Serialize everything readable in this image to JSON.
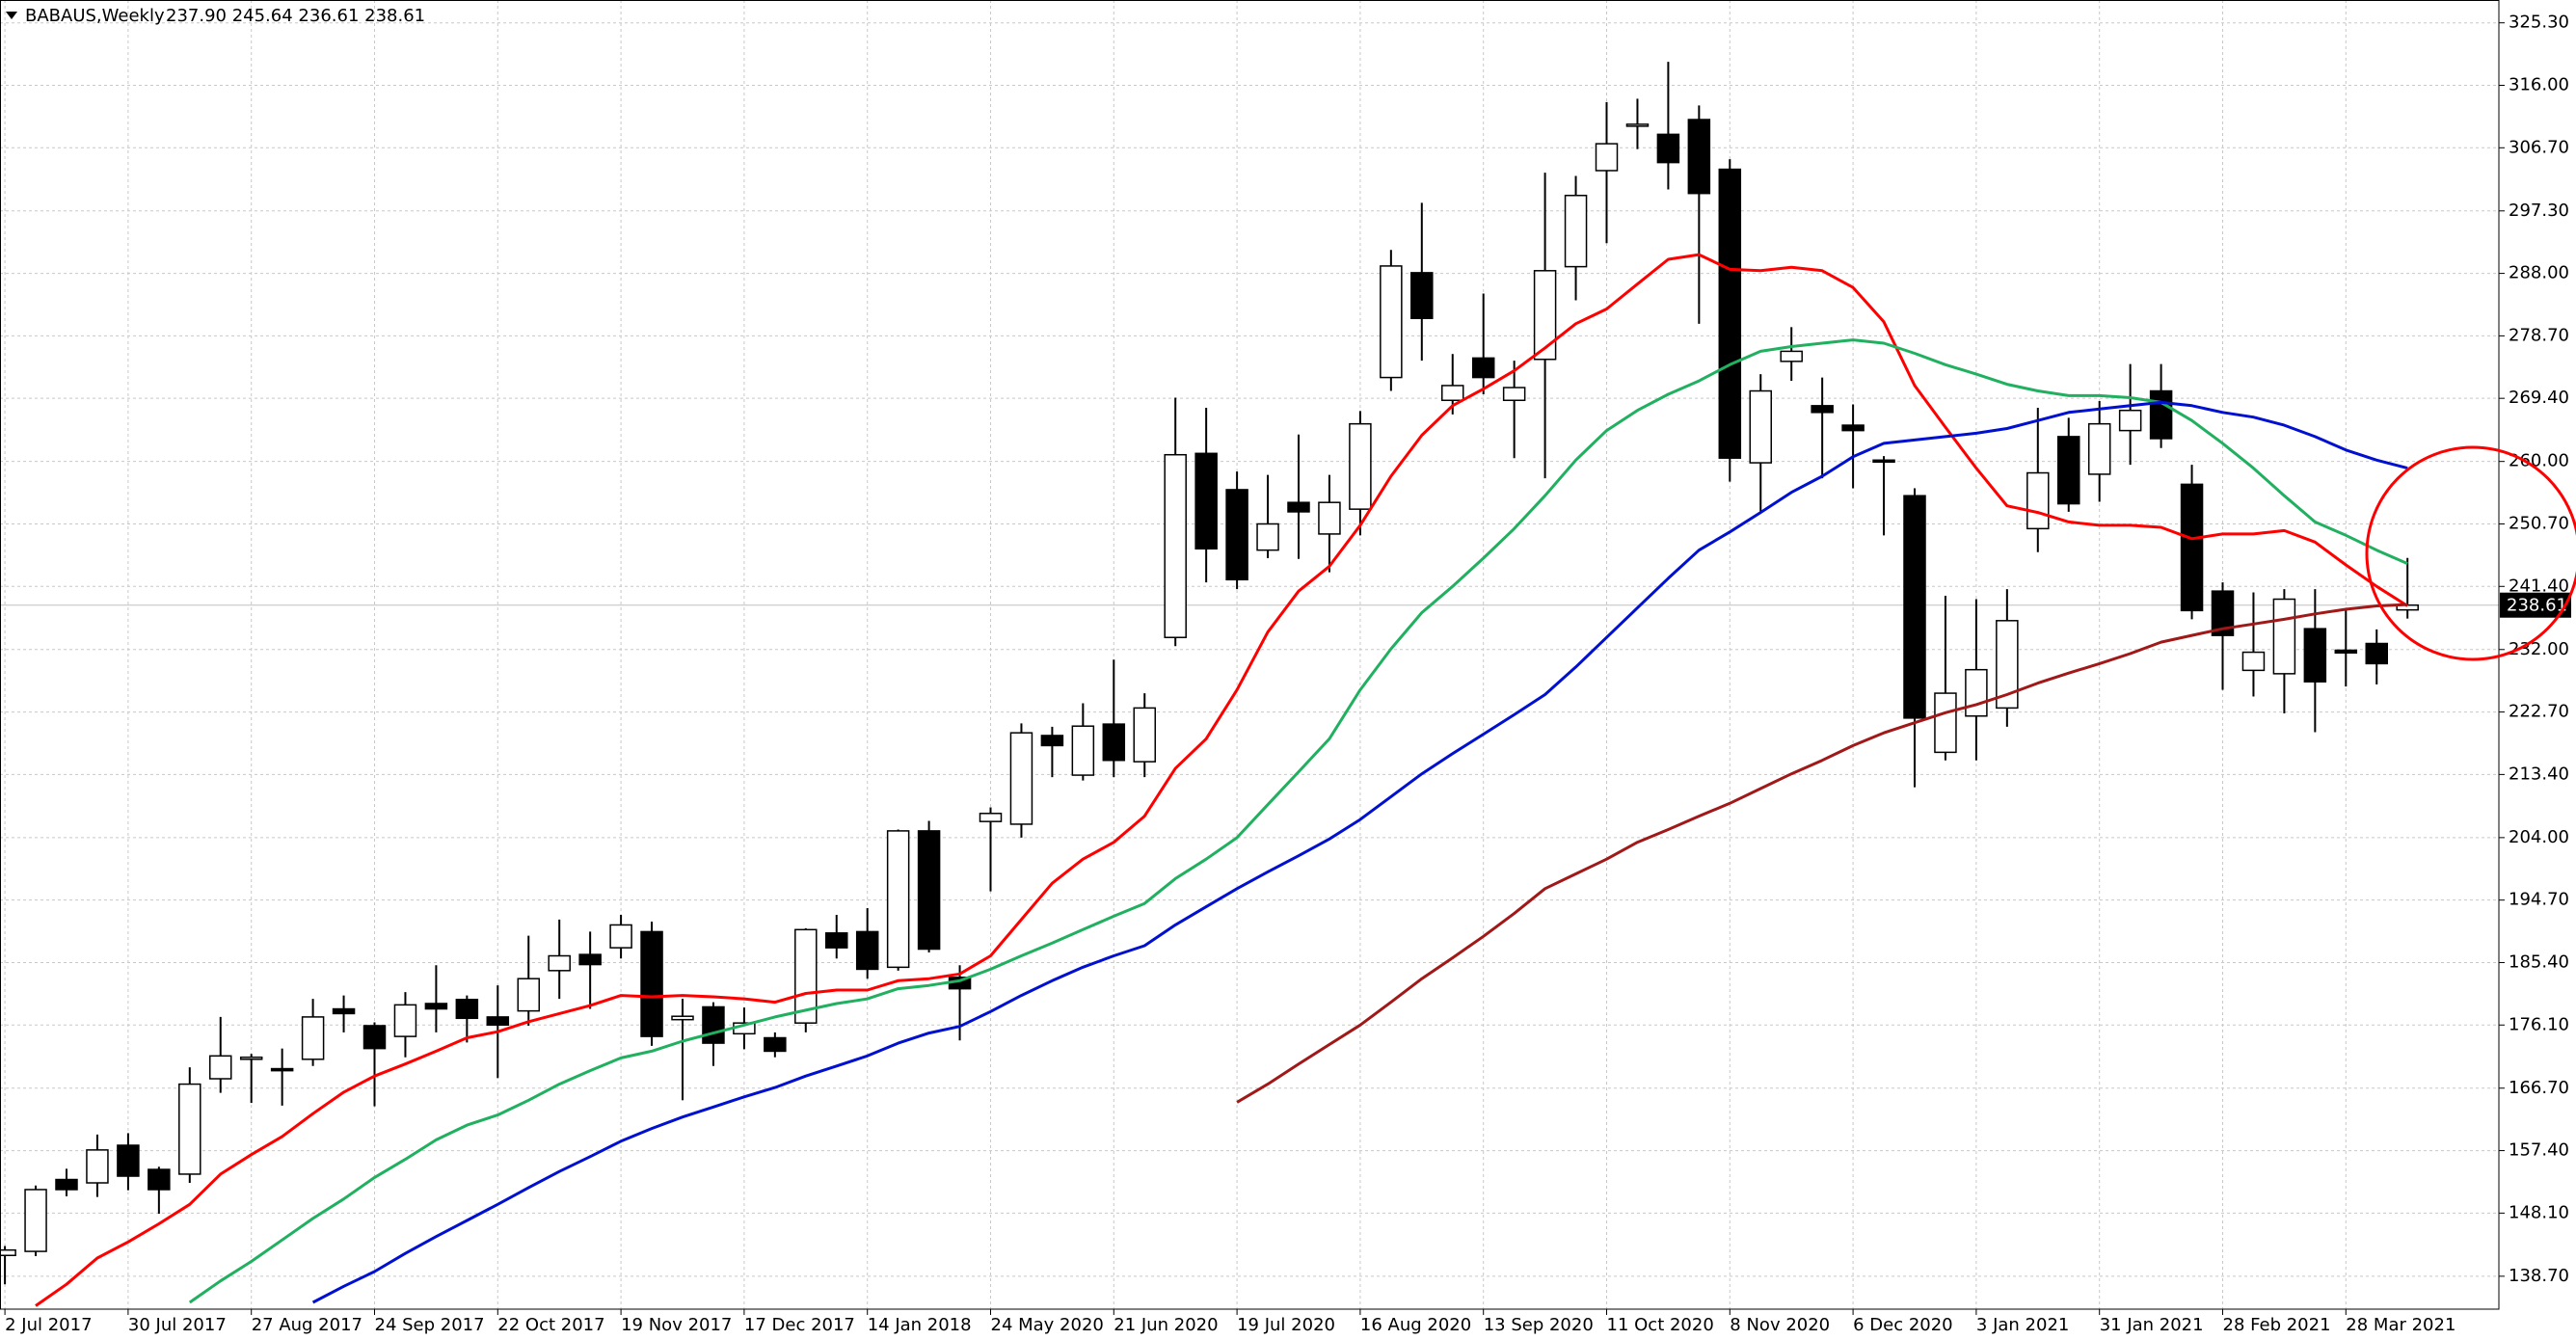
{
  "chart_data": {
    "type": "candlestick",
    "title": "BABAUS,Weekly",
    "header_values": "237.90 245.64 236.61 238.61",
    "categories": [
      "2 Jul 2017",
      null,
      null,
      null,
      "30 Jul 2017",
      null,
      null,
      null,
      "27 Aug 2017",
      null,
      null,
      null,
      "24 Sep 2017",
      null,
      null,
      null,
      "22 Oct 2017",
      null,
      null,
      null,
      "19 Nov 2017",
      null,
      null,
      null,
      "17 Dec 2017",
      null,
      null,
      null,
      "14 Jan 2018",
      null,
      null,
      null,
      "24 May 2020",
      null,
      null,
      null,
      "21 Jun 2020",
      null,
      null,
      null,
      "19 Jul 2020",
      null,
      null,
      null,
      "16 Aug 2020",
      null,
      null,
      null,
      "13 Sep 2020",
      null,
      null,
      null,
      "11 Oct 2020",
      null,
      null,
      null,
      "8 Nov 2020",
      null,
      null,
      null,
      "6 Dec 2020",
      null,
      null,
      null,
      "3 Jan 2021",
      null,
      null,
      null,
      "31 Jan 2021",
      null,
      null,
      null,
      "28 Feb 2021",
      null,
      null,
      null,
      "28 Mar 2021",
      null,
      null
    ],
    "open": [
      141.8,
      142.4,
      153.1,
      152.6,
      158.2,
      154.6,
      153.9,
      168.1,
      171.0,
      169.6,
      171.0,
      178.5,
      176.0,
      174.4,
      179.3,
      179.9,
      177.3,
      178.2,
      184.2,
      186.6,
      187.6,
      190.0,
      176.9,
      178.8,
      174.8,
      174.2,
      176.4,
      189.8,
      190.0,
      184.7,
      205.0,
      183.2,
      206.4,
      206.0,
      219.2,
      213.3,
      220.9,
      215.3,
      233.8,
      261.2,
      255.8,
      246.8,
      253.9,
      249.2,
      252.9,
      272.5,
      288.1,
      269.1,
      275.4,
      269.1,
      275.2,
      289.0,
      303.3,
      310.0,
      308.7,
      310.9,
      303.5,
      259.8,
      274.9,
      268.3,
      265.4,
      260.2,
      254.9,
      216.7,
      222.1,
      223.3,
      250.0,
      263.7,
      258.1,
      264.6,
      270.5,
      256.6,
      240.7,
      228.9,
      228.4,
      235.1,
      231.9,
      232.9,
      237.9
    ],
    "high": [
      143.2,
      152.2,
      154.7,
      159.8,
      160.0,
      155.0,
      169.8,
      177.3,
      171.8,
      172.6,
      180.0,
      180.5,
      176.5,
      181.0,
      185.0,
      180.5,
      182.0,
      189.4,
      191.8,
      190.0,
      192.5,
      191.5,
      180.0,
      179.5,
      178.7,
      175.0,
      190.5,
      192.5,
      193.5,
      205.2,
      206.5,
      185.0,
      208.5,
      221.0,
      220.5,
      224.0,
      230.5,
      225.5,
      269.5,
      268.0,
      258.5,
      258.0,
      264.0,
      258.0,
      267.5,
      291.5,
      298.5,
      276.0,
      285.0,
      275.0,
      303.0,
      302.5,
      313.5,
      314.0,
      319.5,
      313.0,
      305.0,
      273.0,
      280.0,
      272.5,
      268.5,
      260.8,
      256.0,
      240.0,
      239.5,
      241.0,
      268.0,
      266.5,
      269.0,
      274.5,
      274.5,
      259.5,
      242.0,
      240.5,
      241.0,
      241.0,
      238.0,
      235.0,
      245.64
    ],
    "low": [
      137.5,
      141.7,
      150.6,
      150.5,
      151.5,
      148.0,
      152.6,
      166.0,
      164.5,
      164.1,
      170.0,
      175.0,
      164.0,
      171.3,
      175.0,
      173.5,
      168.2,
      176.0,
      180.0,
      178.5,
      186.0,
      173.0,
      164.9,
      170.0,
      172.5,
      171.3,
      175.0,
      186.0,
      183.0,
      184.2,
      186.9,
      173.8,
      196.0,
      204.0,
      213.0,
      212.5,
      213.0,
      213.0,
      232.5,
      242.0,
      241.0,
      245.6,
      245.5,
      243.5,
      249.0,
      270.5,
      275.0,
      267.0,
      270.0,
      260.5,
      257.5,
      284.0,
      292.5,
      306.5,
      300.5,
      280.5,
      257.0,
      252.5,
      272.0,
      257.5,
      256.0,
      249.0,
      211.5,
      215.5,
      215.5,
      220.5,
      246.5,
      252.5,
      254.0,
      259.5,
      262.0,
      236.5,
      226.0,
      225.0,
      222.5,
      219.7,
      226.5,
      226.8,
      236.61
    ],
    "close": [
      142.6,
      151.6,
      151.6,
      157.5,
      153.6,
      151.6,
      167.3,
      171.5,
      171.3,
      169.3,
      177.3,
      177.8,
      172.6,
      179.1,
      178.5,
      177.1,
      176.1,
      183.0,
      186.4,
      185.1,
      191.0,
      174.4,
      177.4,
      173.4,
      176.4,
      172.2,
      190.3,
      187.6,
      184.4,
      205.0,
      187.4,
      181.5,
      207.6,
      219.6,
      217.7,
      220.6,
      215.5,
      223.3,
      261.0,
      247.0,
      242.4,
      250.7,
      252.5,
      253.9,
      265.6,
      289.1,
      281.3,
      271.3,
      272.5,
      271.0,
      288.4,
      299.6,
      307.3,
      310.2,
      304.5,
      299.9,
      260.5,
      270.5,
      276.4,
      267.3,
      264.6,
      260.0,
      221.8,
      225.5,
      229.0,
      236.3,
      258.3,
      253.7,
      265.6,
      267.6,
      263.4,
      237.8,
      234.1,
      231.6,
      239.5,
      227.2,
      231.5,
      229.9,
      238.61
    ],
    "series": [
      {
        "color": "#ff0000",
        "values": [
          null,
          134.3,
          137.5,
          141.4,
          143.8,
          146.5,
          149.4,
          153.9,
          156.8,
          159.5,
          162.9,
          166.1,
          168.5,
          170.3,
          172.2,
          174.2,
          175.1,
          176.6,
          177.8,
          179.0,
          180.5,
          180.3,
          180.5,
          180.3,
          180.0,
          179.5,
          180.8,
          181.3,
          181.3,
          182.7,
          183.0,
          183.7,
          186.4,
          191.8,
          197.2,
          200.8,
          203.3,
          207.2,
          214.3,
          218.7,
          226.0,
          234.6,
          240.7,
          244.4,
          250.5,
          257.8,
          263.9,
          268.3,
          270.8,
          273.5,
          276.9,
          280.5,
          282.7,
          286.4,
          290.1,
          290.8,
          288.6,
          288.4,
          288.9,
          288.4,
          285.9,
          280.8,
          271.3,
          265.1,
          259.0,
          253.4,
          252.4,
          251.0,
          250.5,
          250.5,
          250.2,
          248.5,
          249.2,
          249.2,
          249.7,
          248.0,
          244.6,
          241.4,
          238.5
        ]
      },
      {
        "color": "#20b060",
        "values": [
          null,
          null,
          null,
          null,
          null,
          null,
          134.8,
          138.0,
          140.9,
          144.1,
          147.3,
          150.2,
          153.4,
          156.1,
          159.0,
          161.2,
          162.7,
          164.9,
          167.3,
          169.3,
          171.2,
          172.2,
          173.7,
          174.9,
          176.1,
          177.3,
          178.3,
          179.3,
          180.0,
          181.5,
          182.0,
          182.7,
          184.4,
          186.4,
          188.3,
          190.3,
          192.3,
          194.2,
          197.9,
          200.8,
          204.0,
          208.9,
          213.8,
          218.7,
          226.0,
          232.1,
          237.5,
          241.4,
          245.6,
          250.0,
          254.9,
          260.2,
          264.6,
          267.6,
          270.0,
          272.0,
          274.4,
          276.4,
          277.1,
          277.6,
          278.1,
          277.6,
          276.1,
          274.4,
          273.0,
          271.5,
          270.5,
          269.8,
          269.8,
          269.5,
          268.8,
          266.1,
          262.7,
          259.0,
          254.9,
          251.0,
          249.0,
          246.8,
          244.8
        ]
      },
      {
        "color": "#0010d0",
        "values": [
          null,
          null,
          null,
          null,
          null,
          null,
          null,
          null,
          null,
          null,
          134.8,
          137.2,
          139.4,
          142.1,
          144.6,
          147.0,
          149.4,
          151.9,
          154.3,
          156.5,
          158.8,
          160.7,
          162.4,
          163.9,
          165.4,
          166.8,
          168.5,
          170.0,
          171.5,
          173.4,
          174.9,
          175.9,
          178.1,
          180.5,
          182.7,
          184.7,
          186.4,
          187.9,
          191.0,
          193.7,
          196.4,
          198.9,
          201.3,
          203.8,
          206.7,
          210.1,
          213.5,
          216.5,
          219.4,
          222.3,
          225.3,
          229.4,
          233.8,
          238.2,
          242.6,
          246.8,
          249.5,
          252.4,
          255.4,
          257.8,
          260.7,
          262.7,
          263.2,
          263.7,
          264.2,
          264.9,
          266.1,
          267.3,
          267.8,
          268.3,
          268.8,
          268.3,
          267.3,
          266.6,
          265.4,
          263.7,
          261.7,
          260.2,
          259.0
        ]
      },
      {
        "color": "#a01818",
        "values": [
          null,
          null,
          null,
          null,
          null,
          null,
          null,
          null,
          null,
          null,
          null,
          null,
          null,
          null,
          null,
          null,
          null,
          null,
          null,
          null,
          null,
          null,
          null,
          null,
          null,
          null,
          null,
          null,
          null,
          null,
          null,
          null,
          null,
          null,
          null,
          null,
          null,
          null,
          null,
          null,
          164.6,
          167.3,
          170.3,
          173.2,
          176.1,
          179.5,
          183.0,
          186.1,
          189.3,
          192.7,
          196.4,
          198.6,
          200.8,
          203.3,
          205.2,
          207.2,
          209.1,
          211.3,
          213.5,
          215.5,
          217.7,
          219.6,
          221.1,
          222.6,
          223.8,
          225.3,
          227.0,
          228.5,
          229.9,
          231.4,
          233.1,
          234.1,
          235.1,
          235.8,
          236.5,
          237.3,
          238.0,
          238.5,
          238.7
        ]
      }
    ],
    "last_price": 238.61,
    "ylim": [
      133.8,
      328.7
    ],
    "yticks": [
      {
        "value": 138.7,
        "label": "138.70"
      },
      {
        "value": 148.1,
        "label": "148.10"
      },
      {
        "value": 157.4,
        "label": "157.40"
      },
      {
        "value": 166.7,
        "label": "166.70"
      },
      {
        "value": 176.1,
        "label": "176.10"
      },
      {
        "value": 185.4,
        "label": "185.40"
      },
      {
        "value": 194.7,
        "label": "194.70"
      },
      {
        "value": 204.0,
        "label": "204.00"
      },
      {
        "value": 213.4,
        "label": "213.40"
      },
      {
        "value": 222.7,
        "label": "222.70"
      },
      {
        "value": 232.0,
        "label": "232.00"
      },
      {
        "value": 241.4,
        "label": "241.40"
      },
      {
        "value": 250.7,
        "label": "250.70"
      },
      {
        "value": 260.0,
        "label": "260.00"
      },
      {
        "value": 269.4,
        "label": "269.40"
      },
      {
        "value": 278.7,
        "label": "278.70"
      },
      {
        "value": 288.0,
        "label": "288.00"
      },
      {
        "value": 297.3,
        "label": "297.30"
      },
      {
        "value": 306.7,
        "label": "306.70"
      },
      {
        "value": 316.0,
        "label": "316.00"
      },
      {
        "value": 325.3,
        "label": "325.30"
      }
    ],
    "grid": true,
    "up_color": "#ffffff",
    "down_color": "#000000"
  }
}
